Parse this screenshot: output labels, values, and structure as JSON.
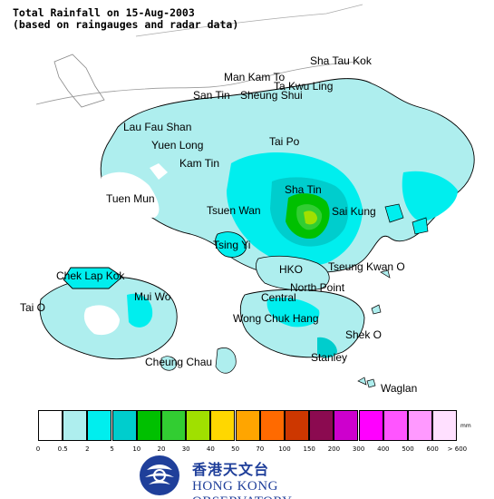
{
  "title": {
    "line1": "Total Rainfall on 15-Aug-2003",
    "line2": "(based on raingauges and radar data)"
  },
  "places": [
    "Sha Tau Kok",
    "Man Kam To",
    "Ta Kwu Ling",
    "San Tin",
    "Sheung Shui",
    "Lau Fau Shan",
    "Yuen Long",
    "Tai Po",
    "Kam Tin",
    "Tuen Mun",
    "Sha Tin",
    "Tsuen Wan",
    "Sai Kung",
    "Tsing Yi",
    "Chek Lap Kok",
    "HKO",
    "Tseung Kwan O",
    "North Point",
    "Central",
    "Tai O",
    "Mui Wo",
    "Wong Chuk Hang",
    "Shek O",
    "Stanley",
    "Cheung Chau",
    "Waglan"
  ],
  "legend": {
    "unit": "mm",
    "colors": [
      "#ffffff",
      "#aeeeee",
      "#00eeee",
      "#00cdcd",
      "#00c000",
      "#32cd32",
      "#a0e000",
      "#ffd700",
      "#ffa500",
      "#ff6a00",
      "#cd3700",
      "#8b0a50",
      "#cd00cd",
      "#ff00ff",
      "#ff55ff",
      "#ff99ff",
      "#ffe0ff"
    ],
    "thresholds": [
      "0",
      "0.5",
      "2",
      "5",
      "10",
      "20",
      "30",
      "40",
      "50",
      "70",
      "100",
      "150",
      "200",
      "300",
      "400",
      "500",
      "600",
      "> 600"
    ]
  },
  "logo": {
    "chinese": "香港天文台",
    "english": "HONG KONG OBSERVATORY"
  },
  "colors": {
    "land_light": "#aeeeee",
    "land_mid": "#00eeee",
    "land_dark": "#00cdcd",
    "green": "#32cd32",
    "coast": "#000000",
    "brand": "#1f3f9a"
  }
}
